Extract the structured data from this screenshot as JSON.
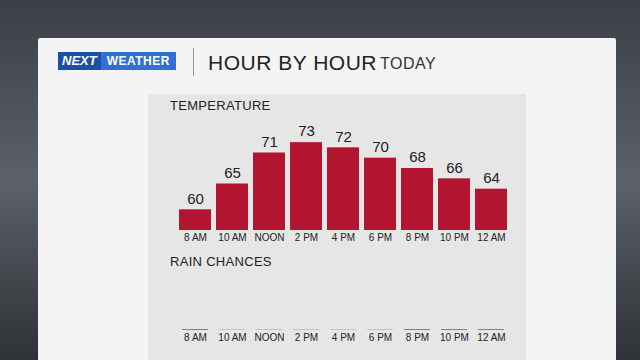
{
  "header": {
    "logo": [
      "NEXT",
      "WEATHER"
    ],
    "title": "HOUR BY HOUR",
    "subtitle": "TODAY"
  },
  "chart_data": [
    {
      "type": "bar",
      "title": "TEMPERATURE",
      "categories": [
        "8 AM",
        "10 AM",
        "NOON",
        "2 PM",
        "4 PM",
        "6 PM",
        "8 PM",
        "10 PM",
        "12 AM"
      ],
      "values": [
        60,
        65,
        71,
        73,
        72,
        70,
        68,
        66,
        64
      ],
      "color": "#b3142f",
      "ylim": [
        56,
        74
      ],
      "data_labels": true,
      "tick_labels": "x"
    },
    {
      "type": "bar",
      "title": "RAIN CHANCES",
      "categories": [
        "8 AM",
        "10 AM",
        "NOON",
        "2 PM",
        "4 PM",
        "6 PM",
        "8 PM",
        "10 PM",
        "12 AM"
      ],
      "values": [
        0,
        0,
        0,
        0,
        0,
        0,
        0,
        0,
        0
      ],
      "colors": [
        "#3fae49",
        "#c4c4c4",
        "#c4c4c4",
        "#c4c4c4",
        "#c4c4c4",
        "#c4c4c4",
        "#3fae49",
        "#3fae49",
        "#3fae49"
      ],
      "ylim": [
        0,
        100
      ],
      "tick_labels": "x"
    }
  ]
}
